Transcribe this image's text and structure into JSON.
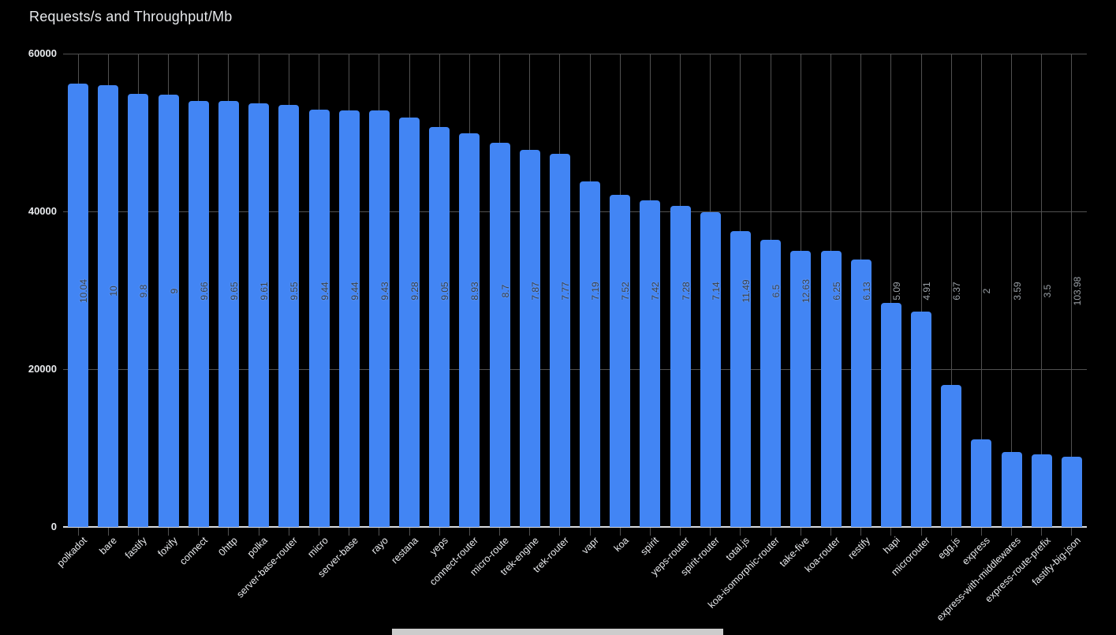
{
  "page": {
    "background": "#000000"
  },
  "chart_data": {
    "type": "bar",
    "title": "Requests/s and Throughput/Mb",
    "xlabel": "",
    "ylabel": "",
    "legend": "none",
    "grid": "horizontal at yticks + vertical line per category",
    "ylim": [
      0,
      60000
    ],
    "yticks": [
      0,
      20000,
      40000,
      60000
    ],
    "categories": [
      "polkadot",
      "bare",
      "fastify",
      "foxify",
      "connect",
      "0http",
      "polka",
      "server-base-router",
      "micro",
      "server-base",
      "rayo",
      "restana",
      "yeps",
      "connect-router",
      "micro-route",
      "trek-engine",
      "trek-router",
      "vapr",
      "koa",
      "spirit",
      "yeps-router",
      "spirit-router",
      "total.js",
      "koa-isomorphic-router",
      "take-five",
      "koa-router",
      "restify",
      "hapi",
      "microrouter",
      "egg.js",
      "express",
      "express-with-middlewares",
      "express-route-prefix",
      "fastify-big-json"
    ],
    "series": [
      {
        "name": "Requests/s",
        "values": [
          56200,
          56000,
          54900,
          54800,
          54000,
          54000,
          53700,
          53500,
          52900,
          52800,
          52800,
          51900,
          50700,
          49900,
          48700,
          47800,
          47300,
          43800,
          42100,
          41400,
          40700,
          39900,
          37500,
          36400,
          35000,
          35000,
          33900,
          28400,
          27300,
          18000,
          11100,
          9500,
          9200,
          8900
        ]
      },
      {
        "name": "Throughput/Mb",
        "labels": [
          "10.04",
          "10",
          "9.8",
          "9",
          "9.66",
          "9.65",
          "9.61",
          "9.55",
          "9.44",
          "9.44",
          "9.43",
          "9.28",
          "9.05",
          "8.93",
          "8.7",
          "7.87",
          "7.77",
          "7.19",
          "7.52",
          "7.42",
          "7.28",
          "7.14",
          "11.49",
          "6.5",
          "12.63",
          "6.25",
          "6.13",
          "5.09",
          "4.91",
          "6.37",
          "2",
          "3.59",
          "3.5",
          "103.98"
        ]
      }
    ],
    "colors": {
      "bar": "#4285f4",
      "on_bar_value_label": "#3c4043",
      "off_bar_value_label": "#9aa0a6",
      "axis_text": "#e8eaed",
      "gridline": "#515151",
      "baseline": "#dadce0",
      "background": "#000000"
    }
  },
  "scrollbar": {
    "present": "true"
  }
}
